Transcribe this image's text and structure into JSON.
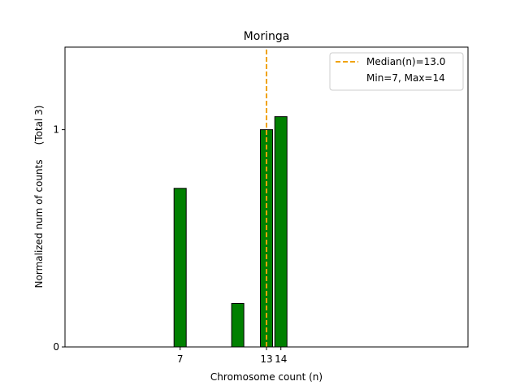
{
  "chart_data": {
    "type": "bar",
    "title": "Moringa",
    "xlabel": "Chromosome count (n)",
    "ylabel": "Normalized num of counts",
    "ylabel_note": "(Total 3)",
    "xlim": [
      -1,
      27
    ],
    "ylim": [
      0,
      1.38
    ],
    "x_ticks": [
      {
        "value": 7,
        "label": "7"
      },
      {
        "value": 13,
        "label": "13"
      },
      {
        "value": 14,
        "label": "14"
      }
    ],
    "y_ticks": [
      {
        "value": 0,
        "label": "0"
      },
      {
        "value": 1,
        "label": "1"
      }
    ],
    "bars": [
      {
        "x": 7,
        "value": 0.73
      },
      {
        "x": 11,
        "value": 0.2
      },
      {
        "x": 13,
        "value": 1.0
      },
      {
        "x": 14,
        "value": 1.06
      }
    ],
    "bar_color": "#008000",
    "bar_edge_color": "#000000",
    "median": {
      "x": 13.0,
      "color": "#f0a30a"
    },
    "legend": {
      "position": "top-right",
      "entries": [
        "Median(n)=13.0",
        "Min=7, Max=14"
      ]
    },
    "grid": false
  }
}
